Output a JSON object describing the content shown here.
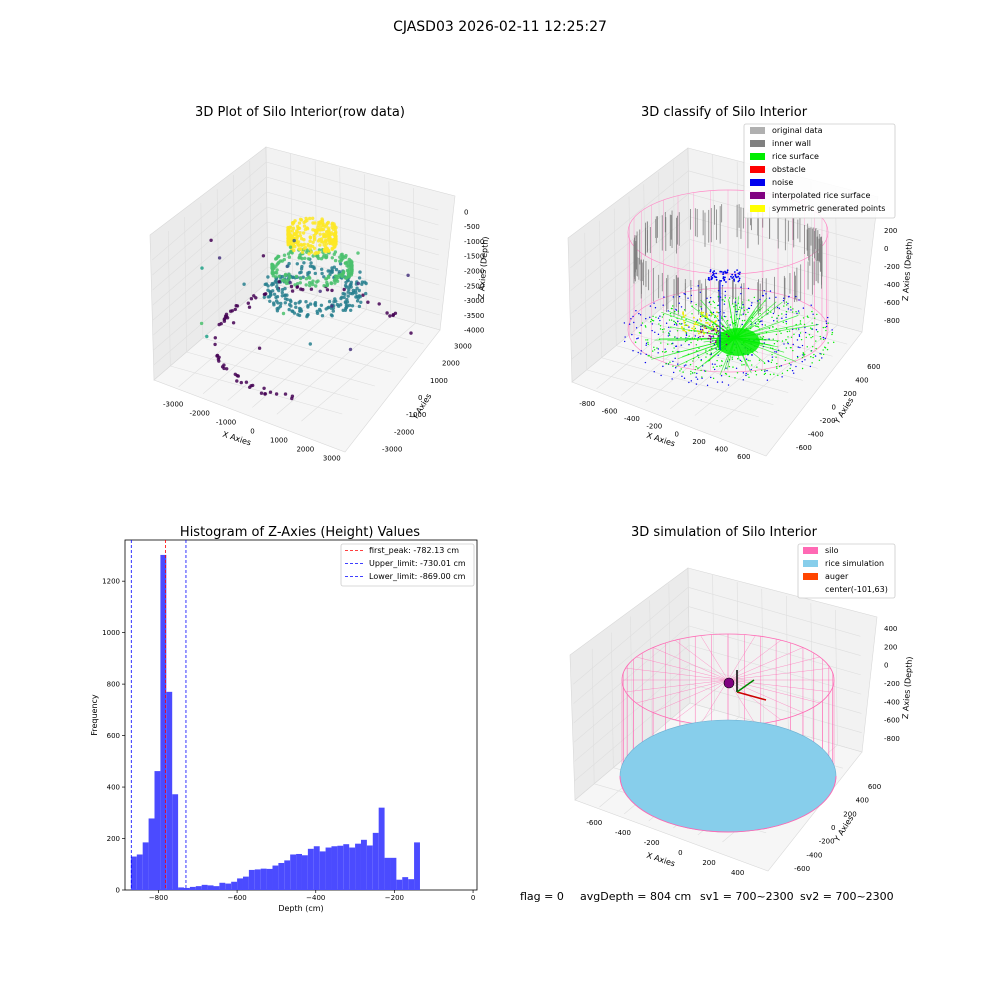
{
  "suptitle": "CJASD03 2026-02-11 12:25:27",
  "footer": {
    "flag": "flag = 0",
    "avg_depth": "avgDepth = 804 cm",
    "sv1": "sv1 = 700~2300",
    "sv2": "sv2 = 700~2300"
  },
  "colors": {
    "original": "#b0b0b0",
    "inner_wall": "#808080",
    "rice_surface": "#00ee00",
    "obstacle": "#ff0000",
    "noise": "#0000ee",
    "interp": "#800080",
    "symmetric": "#ffff00",
    "silo": "#ff69b4",
    "rice_sim": "#87ceeb",
    "auger": "#ff4500",
    "hist": "#4b4bff"
  },
  "chart_data": [
    {
      "type": "scatter",
      "projection": "3d",
      "title": "3D Plot of Silo Interior(row data)",
      "xlabel": "X Axies",
      "ylabel": "Y Axies",
      "zlabel": "Z Axies (Depth)",
      "x_ticks": [
        "-3000",
        "-2000",
        "-1000",
        "0",
        "1000",
        "2000",
        "3000"
      ],
      "y_ticks": [
        "-3000",
        "-2000",
        "-1000",
        "0",
        "1000",
        "2000",
        "3000"
      ],
      "z_ticks": [
        "0",
        "-500",
        "-1000",
        "-1500",
        "-2000",
        "-2500",
        "-3000",
        "-3500",
        "-4000"
      ],
      "xlim": [
        -3500,
        3000
      ],
      "ylim": [
        -3500,
        3500
      ],
      "zlim": [
        -4200,
        200
      ],
      "colormap": "viridis"
    },
    {
      "type": "scatter",
      "projection": "3d",
      "title": "3D classify of Silo Interior",
      "xlabel": "X Axies",
      "ylabel": "Y Axies",
      "zlabel": "Z Axies (Depth)",
      "x_ticks": [
        "-800",
        "-600",
        "-400",
        "-200",
        "0",
        "200",
        "400",
        "600"
      ],
      "y_ticks": [
        "-600",
        "-400",
        "-200",
        "0",
        "200",
        "400",
        "600"
      ],
      "z_ticks": [
        "200",
        "0",
        "-200",
        "-400",
        "-600",
        "-800"
      ],
      "xlim": [
        -850,
        650
      ],
      "ylim": [
        -650,
        650
      ],
      "zlim": [
        -900,
        300
      ],
      "legend": [
        {
          "name": "original data",
          "color": "#b0b0b0"
        },
        {
          "name": "inner wall",
          "color": "#808080"
        },
        {
          "name": "rice surface",
          "color": "#00ee00"
        },
        {
          "name": "obstacle",
          "color": "#ff0000"
        },
        {
          "name": "noise",
          "color": "#0000ee"
        },
        {
          "name": "interpolated rice surface",
          "color": "#800080"
        },
        {
          "name": "symmetric generated points",
          "color": "#ffff00"
        }
      ],
      "legend_loc": "upper right"
    },
    {
      "type": "bar",
      "subtype": "histogram",
      "title": "Histogram of Z-Axies (Height) Values",
      "xlabel": "Depth (cm)",
      "ylabel": "Frequency",
      "xlim": [
        -885,
        10
      ],
      "ylim": [
        0,
        1360
      ],
      "x_ticks": [
        -800,
        -600,
        -400,
        -200,
        0
      ],
      "y_ticks": [
        0,
        200,
        400,
        600,
        800,
        1000,
        1200
      ],
      "bin_width": 15,
      "bin_start": -870,
      "values": [
        130,
        138,
        185,
        278,
        462,
        1302,
        770,
        372,
        10,
        8,
        12,
        15,
        20,
        18,
        15,
        28,
        25,
        32,
        45,
        52,
        78,
        80,
        83,
        82,
        95,
        105,
        115,
        138,
        140,
        135,
        160,
        170,
        150,
        165,
        170,
        172,
        178,
        165,
        180,
        195,
        173,
        222,
        320,
        125,
        125,
        40,
        50,
        42,
        185
      ],
      "lines": [
        {
          "label": "first_peak: -782.13 cm",
          "x": -782.13,
          "color": "#ff0000"
        },
        {
          "label": "Upper_limit: -730.01 cm",
          "x": -730.01,
          "color": "#0000ff"
        },
        {
          "label": "Lower_limit: -869.00 cm",
          "x": -869.0,
          "color": "#0000ff"
        }
      ],
      "legend_loc": "upper right"
    },
    {
      "type": "scatter",
      "projection": "3d",
      "title": "3D simulation of Silo Interior",
      "xlabel": "X Axies",
      "ylabel": "Y Axies",
      "zlabel": "Z Axies (Depth)",
      "x_ticks": [
        "-600",
        "-400",
        "-200",
        "0",
        "200",
        "400"
      ],
      "y_ticks": [
        "-600",
        "-400",
        "-200",
        "0",
        "200",
        "400",
        "600"
      ],
      "z_ticks": [
        "400",
        "200",
        "0",
        "-200",
        "-400",
        "-600",
        "-800"
      ],
      "xlim": [
        -700,
        500
      ],
      "ylim": [
        -650,
        650
      ],
      "zlim": [
        -900,
        450
      ],
      "legend": [
        {
          "name": "silo",
          "color": "#ff69b4"
        },
        {
          "name": "rice simulation",
          "color": "#87ceeb"
        },
        {
          "name": "auger",
          "color": "#ff4500"
        },
        {
          "name": "center(-101,63)",
          "color": ""
        }
      ],
      "legend_loc": "upper right"
    }
  ]
}
